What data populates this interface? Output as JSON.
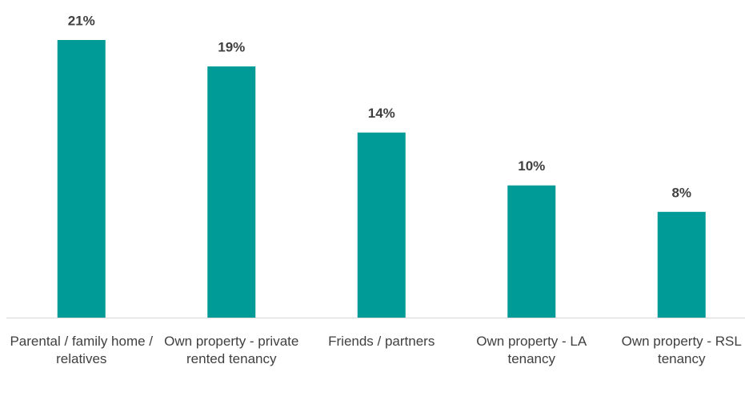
{
  "chart_data": {
    "type": "bar",
    "categories": [
      "Parental / family home / relatives",
      "Own property - private rented tenancy",
      "Friends / partners",
      "Own property - LA tenancy",
      "Own property - RSL tenancy"
    ],
    "values": [
      21,
      19,
      14,
      10,
      8
    ],
    "value_labels": [
      "21%",
      "19%",
      "14%",
      "10%",
      "8%"
    ],
    "color": "#009b96"
  }
}
